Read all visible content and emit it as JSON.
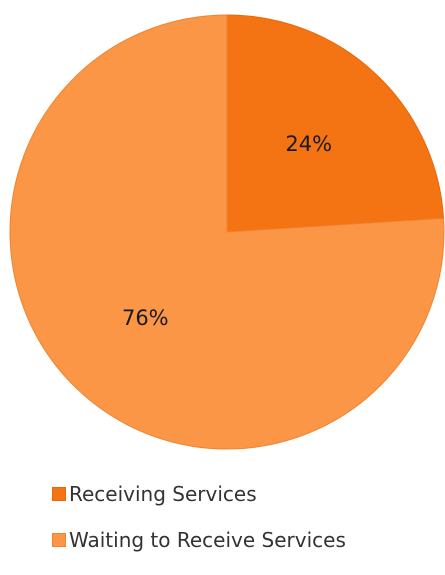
{
  "chart_data": {
    "type": "pie",
    "title": "",
    "categories": [
      "Receiving Services",
      "Waiting to Receive Services"
    ],
    "values": [
      24,
      76
    ],
    "data_labels": [
      "24%",
      "76%"
    ],
    "colors": [
      "#f47313",
      "#fb9646"
    ],
    "border_colors": [
      "#e8680c",
      "#f0842f"
    ],
    "legend": {
      "position": "bottom-left",
      "items": [
        {
          "label": "Receiving Services",
          "color": "#f47313"
        },
        {
          "label": "Waiting to Receive Services",
          "color": "#fb9646"
        }
      ]
    },
    "start_angle_deg": 0,
    "direction": "clockwise"
  }
}
